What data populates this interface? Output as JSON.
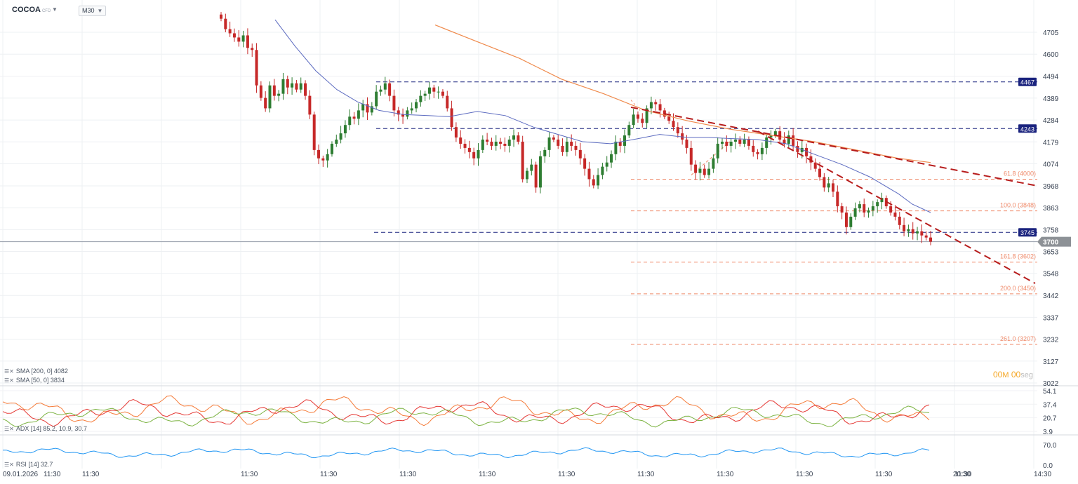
{
  "header": {
    "symbol": "COCOA",
    "symbol_suffix": "CFD",
    "timeframe": "M30"
  },
  "indicators": {
    "sma200_label": "SMA [200, 0] 4082",
    "sma50_label": "SMA [50, 0] 3834",
    "adx_label": "ADX [14] 85.2, 10.9, 30.7",
    "rsi_label": "RSI [14] 32.7"
  },
  "countdown": {
    "minutes": "00",
    "minutes_unit": "M",
    "seconds": "00",
    "seconds_unit": "seg"
  },
  "colors": {
    "bull": "#2e7d32",
    "bear": "#c62828",
    "sma50": "#5c6bc0",
    "sma200": "#ef8a4c",
    "trendline": "#b71c1c",
    "fib": "#ef8a6a",
    "hline": "#1a237e",
    "rsi": "#2196f3",
    "adx": "#f57c3a",
    "di_plus": "#7cb342",
    "di_minus": "#e53935"
  },
  "chart_data": {
    "type": "candlestick",
    "y_ticks": [
      "4705",
      "4600",
      "4494",
      "4389",
      "4284",
      "4179",
      "4074",
      "3968",
      "3863",
      "3758",
      "3653",
      "3548",
      "3442",
      "3337",
      "3232",
      "3127",
      "3022"
    ],
    "price_labels": [
      {
        "value": "4467",
        "style": "boxed"
      },
      {
        "value": "4243",
        "style": "boxed"
      },
      {
        "value": "3745",
        "style": "boxed"
      },
      {
        "value": "3700",
        "style": "current"
      }
    ],
    "fib_levels": [
      {
        "label": "61.8 (4000)",
        "value": 4000
      },
      {
        "label": "100.0 (3848)",
        "value": 3848
      },
      {
        "label": "161.8 (3602)",
        "value": 3602
      },
      {
        "label": "200.0 (3450)",
        "value": 3450
      },
      {
        "label": "261.0 (3207)",
        "value": 3207
      }
    ],
    "x_tick_labels": [
      "09.01.2026",
      "11:30",
      "11:30",
      "11:30",
      "11:30",
      "11:30",
      "11:30",
      "11:30",
      "11:30",
      "11:30",
      "11:30",
      "11:30",
      "11:30",
      "20:30",
      "14:30"
    ],
    "adx_ticks": [
      "54.1",
      "37.4",
      "20.7",
      "3.9"
    ],
    "rsi_ticks": [
      "70.0",
      "0.0"
    ],
    "close_series": [
      4770,
      4720,
      4700,
      4680,
      4660,
      4690,
      4630,
      4620,
      4450,
      4390,
      4340,
      4450,
      4400,
      4410,
      4480,
      4440,
      4460,
      4430,
      4460,
      4400,
      4310,
      4140,
      4100,
      4090,
      4120,
      4170,
      4190,
      4220,
      4260,
      4300,
      4290,
      4330,
      4360,
      4320,
      4350,
      4420,
      4430,
      4460,
      4400,
      4330,
      4310,
      4300,
      4330,
      4340,
      4370,
      4400,
      4410,
      4440,
      4420,
      4420,
      4400,
      4340,
      4250,
      4200,
      4170,
      4150,
      4130,
      4100,
      4140,
      4190,
      4180,
      4160,
      4180,
      4170,
      4160,
      4190,
      4210,
      4180,
      4000,
      4040,
      4070,
      3960,
      4110,
      4140,
      4200,
      4190,
      4160,
      4130,
      4180,
      4160,
      4140,
      4100,
      4050,
      4000,
      3970,
      4020,
      4060,
      4080,
      4120,
      4180,
      4160,
      4210,
      4260,
      4310,
      4290,
      4270,
      4340,
      4370,
      4360,
      4330,
      4300,
      4280,
      4250,
      4220,
      4190,
      4150,
      4070,
      4030,
      4050,
      4020,
      4050,
      4100,
      4170,
      4180,
      4160,
      4180,
      4190,
      4170,
      4190,
      4160,
      4130,
      4120,
      4150,
      4200,
      4210,
      4230,
      4190,
      4170,
      4210,
      4160,
      4130,
      4150,
      4110,
      4080,
      4050,
      4010,
      3960,
      3980,
      3940,
      3870,
      3840,
      3770,
      3820,
      3860,
      3880,
      3840,
      3850,
      3870,
      3890,
      3910,
      3870,
      3840,
      3820,
      3780,
      3750,
      3760,
      3740,
      3750,
      3730,
      3720,
      3700
    ]
  }
}
